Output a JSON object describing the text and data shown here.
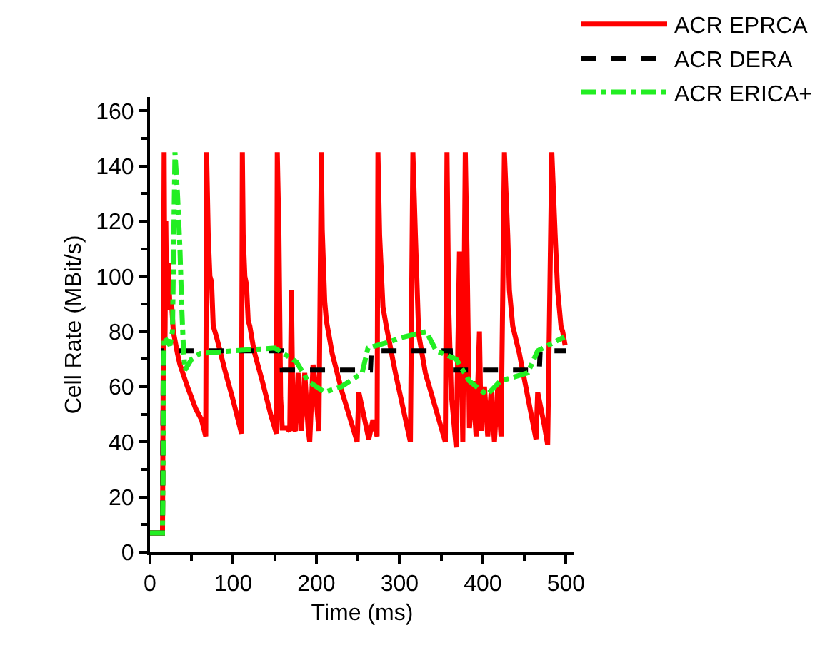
{
  "chart_data": {
    "type": "line",
    "xlabel": "Time (ms)",
    "ylabel": "Cell Rate (MBit/s)",
    "xlim": [
      0,
      510
    ],
    "xticks": [
      0,
      100,
      200,
      300,
      400,
      500
    ],
    "ylim": [
      0,
      165
    ],
    "yticks": [
      0,
      20,
      40,
      60,
      80,
      100,
      120,
      140,
      160
    ],
    "grid": false,
    "legend": "top right",
    "marker": "none",
    "series": [
      {
        "name": "ACR EPRCA",
        "color": "#ff0000",
        "line_style": "solid",
        "x": [
          0,
          15,
          16,
          17,
          18,
          19,
          20,
          22,
          24,
          26,
          28,
          33,
          36,
          45,
          55,
          62,
          67,
          68,
          70,
          72,
          74,
          76,
          80,
          90,
          100,
          110,
          111,
          112,
          114,
          116,
          118,
          120,
          125,
          135,
          145,
          152,
          153,
          155,
          157,
          159,
          164,
          168,
          170,
          172,
          175,
          178,
          182,
          186,
          190,
          192,
          196,
          198,
          203,
          206,
          207,
          210,
          212,
          219,
          231,
          249,
          251,
          263,
          268,
          273,
          274,
          276,
          280,
          284,
          295,
          313,
          316,
          319,
          323,
          331,
          355,
          357,
          359,
          362,
          368,
          372,
          376,
          379,
          381,
          384,
          388,
          392,
          396,
          398,
          402,
          406,
          410,
          414,
          418,
          422,
          426,
          430,
          432,
          436,
          444,
          464,
          466,
          474,
          478,
          483,
          487,
          490,
          494,
          496,
          499
        ],
        "values": [
          7,
          7,
          75,
          145,
          75,
          120,
          90,
          105,
          88,
          90,
          80,
          72,
          68,
          60,
          52,
          48,
          42,
          145,
          115,
          100,
          98,
          82,
          78,
          66,
          55,
          43,
          145,
          115,
          100,
          97,
          84,
          82,
          73,
          62,
          50,
          43,
          145,
          115,
          56,
          45,
          45,
          44,
          95,
          45,
          44,
          65,
          44,
          65,
          45,
          40,
          68,
          62,
          44,
          145,
          117,
          91,
          84,
          72,
          58,
          40,
          58,
          41,
          48,
          42,
          145,
          115,
          89,
          82,
          65,
          40,
          145,
          115,
          79,
          65,
          40,
          145,
          90,
          58,
          38,
          109,
          40,
          145,
          110,
          45,
          62,
          42,
          80,
          44,
          60,
          42,
          58,
          40,
          60,
          42,
          145,
          115,
          95,
          82,
          72,
          41,
          58,
          46,
          39,
          145,
          115,
          95,
          82,
          80,
          75
        ]
      },
      {
        "name": "ACR DERA",
        "color": "#000000",
        "line_style": "dashed",
        "x": [
          0,
          15,
          16,
          158,
          159,
          265,
          266,
          361,
          362,
          468,
          469,
          500
        ],
        "values": [
          7,
          7,
          73,
          73,
          66,
          66,
          73,
          73,
          66,
          66,
          73,
          73
        ]
      },
      {
        "name": "ACR ERICA+",
        "color": "#22ee22",
        "line_style": "dashdot",
        "x": [
          0,
          15,
          17,
          24,
          27,
          30,
          33,
          36,
          38,
          40,
          42,
          50,
          60,
          100,
          150,
          176,
          190,
          210,
          230,
          255,
          262,
          285,
          305,
          332,
          344,
          368,
          384,
          405,
          421,
          454,
          466,
          498
        ],
        "values": [
          7,
          7,
          78,
          75,
          80,
          145,
          130,
          110,
          90,
          75,
          66,
          70,
          72,
          73,
          74,
          69,
          62,
          58,
          60,
          65,
          74,
          76,
          78,
          80,
          73,
          70,
          62,
          57,
          62,
          65,
          73,
          78
        ]
      }
    ]
  }
}
